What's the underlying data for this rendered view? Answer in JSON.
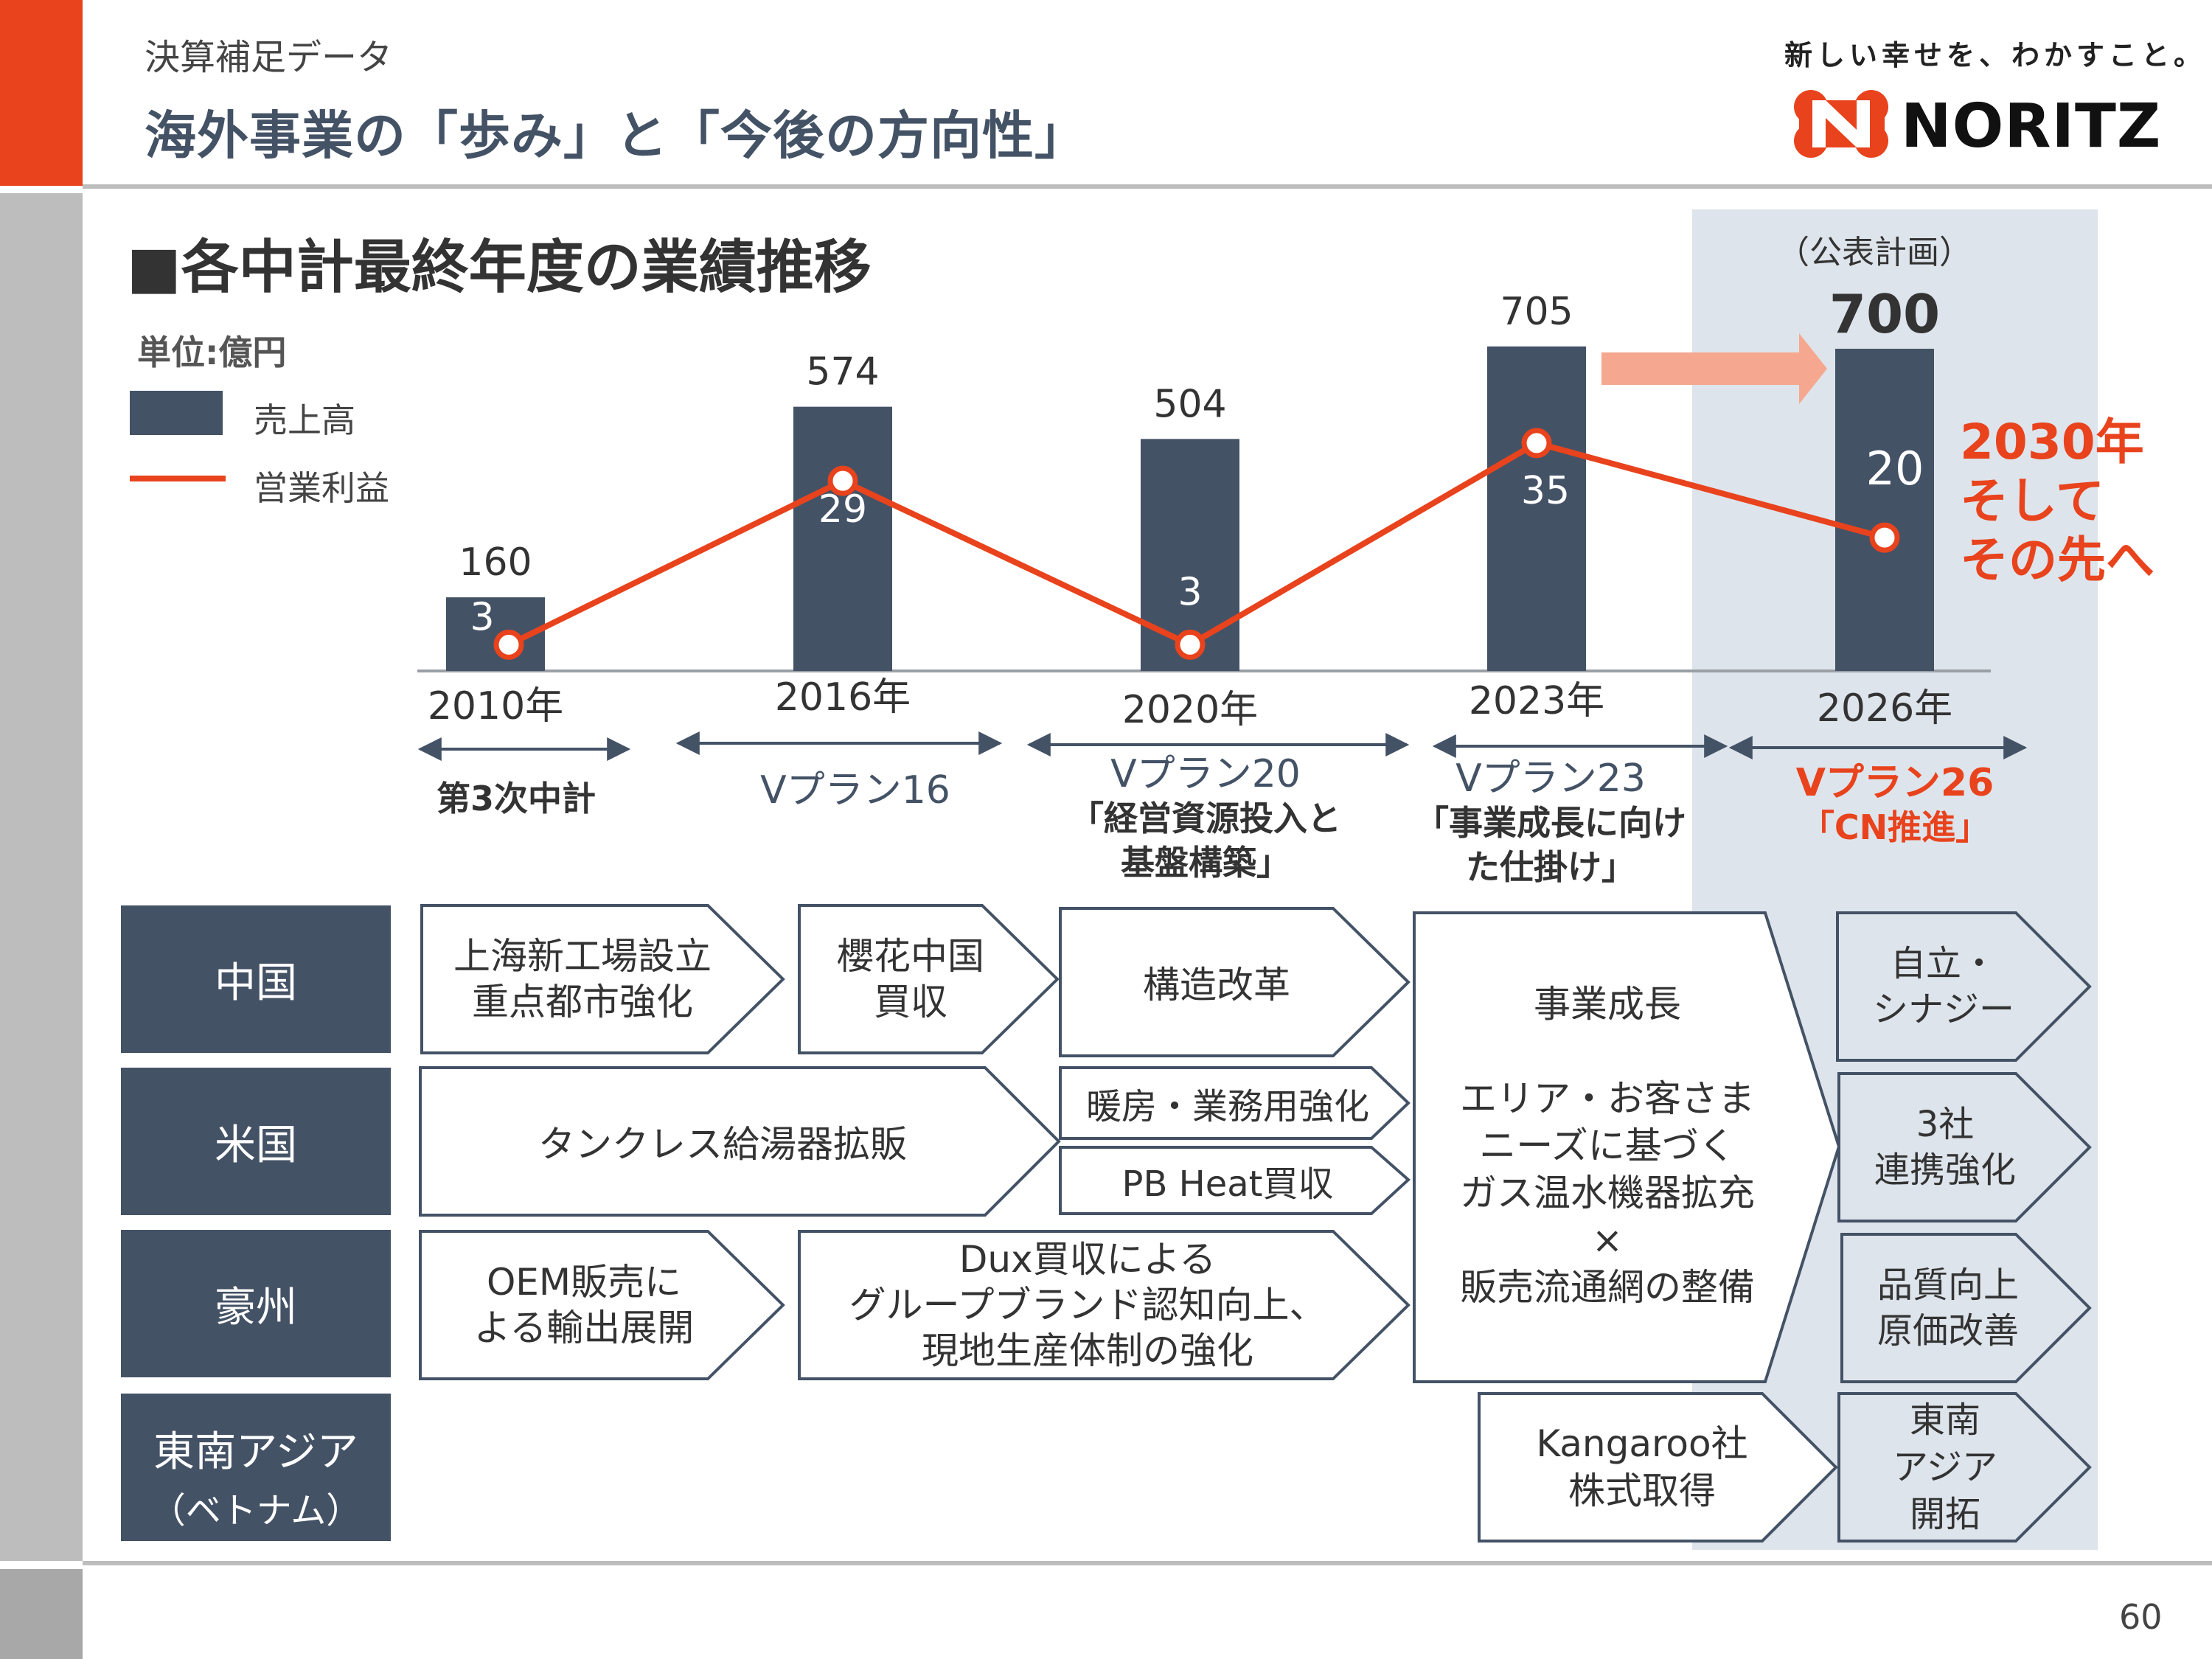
{
  "header": {
    "subtitle": "決算補足データ",
    "title": "海外事業の「歩み」と「今後の方向性」",
    "tagline": "新しい幸せを、わかすこと。",
    "logo_text": "NORITZ"
  },
  "section_title": "■各中計最終年度の業績推移",
  "unit": "単位:億円",
  "public_plan": "（公表計画）",
  "future_note": [
    "2030年",
    "そして",
    "その先へ"
  ],
  "page_number": "60",
  "colors": {
    "accent": "#E8431D",
    "navy": "#445266",
    "highlight_bg": "#DEE4EB",
    "arrow_salmon": "#F5A88F",
    "sidebar_gray": "#BDBDBD"
  },
  "chart_data": {
    "type": "bar",
    "categories": [
      "2010年",
      "2016年",
      "2020年",
      "2023年",
      "2026年"
    ],
    "series": [
      {
        "name": "売上高",
        "kind": "bar",
        "values": [
          160,
          574,
          504,
          705,
          700
        ],
        "color": "#445266"
      },
      {
        "name": "営業利益",
        "kind": "line",
        "values": [
          3,
          29,
          3,
          35,
          20
        ],
        "color": "#E8431D"
      }
    ],
    "ylim_sales": [
      0,
      740
    ],
    "ylim_profit": [
      0,
      55
    ],
    "legend_position": "top-left",
    "grid": false
  },
  "plans": [
    {
      "lines": [
        "第3次中計"
      ],
      "highlight": false
    },
    {
      "lines": [
        "Vプラン16"
      ],
      "highlight": false
    },
    {
      "lines": [
        "Vプラン20",
        "「経営資源投入と",
        "基盤構築」"
      ],
      "highlight": false
    },
    {
      "lines": [
        "Vプラン23",
        "「事業成長に向け",
        "た仕掛け」"
      ],
      "highlight": false
    },
    {
      "lines": [
        "Vプラン26",
        "「CN推進」"
      ],
      "highlight": true
    }
  ],
  "regions": [
    "中国",
    "米国",
    "豪州",
    "東南アジア",
    "（ベトナム）"
  ],
  "initiatives": {
    "china_1": [
      "上海新工場設立",
      "重点都市強化"
    ],
    "china_2": [
      "櫻花中国",
      "買収"
    ],
    "china_3": [
      "構造改革"
    ],
    "usa_1": [
      "タンクレス給湯器拡販"
    ],
    "usa_2": [
      "暖房・業務用強化"
    ],
    "usa_3": [
      "PB Heat買収"
    ],
    "aus_1": [
      "OEM販売に",
      "よる輸出展開"
    ],
    "aus_2": [
      "Dux買収による",
      "グループブランド認知向上、",
      "現地生産体制の強化"
    ],
    "growth": [
      "事業成長",
      "",
      "エリア・お客さま",
      "ニーズに基づく",
      "ガス温水機器拡充",
      "×",
      "販売流通網の整備"
    ],
    "sea_1": [
      "Kangaroo社",
      "株式取得"
    ],
    "future_china": [
      "自立・",
      "シナジー"
    ],
    "future_usa": [
      "3社",
      "連携強化"
    ],
    "future_aus": [
      "品質向上",
      "原価改善"
    ],
    "future_sea": [
      "東南",
      "アジア",
      "開拓"
    ]
  }
}
